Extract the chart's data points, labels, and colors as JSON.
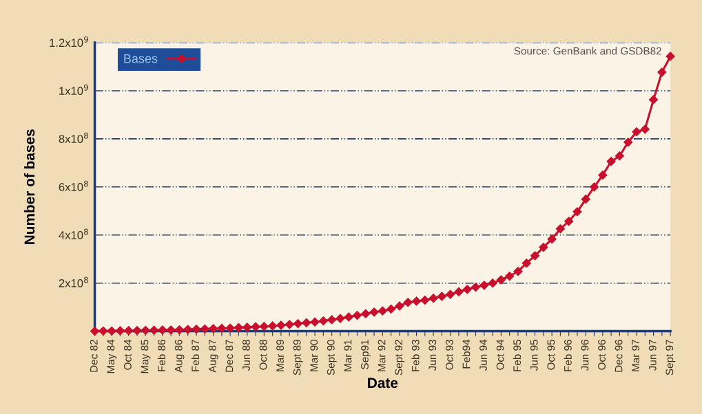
{
  "chart_data": {
    "type": "line",
    "xlabel": "Date",
    "ylabel": "Number of bases",
    "categories": [
      "Dec 82",
      null,
      "May 84",
      null,
      "Oct 84",
      null,
      "May 85",
      null,
      "Feb 86",
      null,
      "Aug 86",
      null,
      "Feb 87",
      null,
      "Aug 87",
      null,
      "Dec 87",
      null,
      "Jun 88",
      null,
      "Oct 88",
      null,
      "Mar 89",
      null,
      "Sept 89",
      null,
      "Mar 90",
      null,
      "Sept 90",
      null,
      "Mar 91",
      null,
      "Sep91",
      null,
      "Mar 92",
      null,
      "Sept 92",
      null,
      "Feb 93",
      null,
      "Jun 93",
      null,
      "Oct 93",
      null,
      "Feb94",
      null,
      "Jun 94",
      null,
      "Oct 94",
      null,
      "Feb 95",
      null,
      "Jun 95",
      null,
      "Oct 95",
      null,
      "Feb 96",
      null,
      "Jun 96",
      null,
      "Oct 96",
      null,
      "Dec 96",
      null,
      "Mar 97",
      null,
      "Jun 97",
      null,
      "Sept 97"
    ],
    "series": [
      {
        "name": "Bases",
        "color": "#c8102e",
        "values": [
          0,
          1000000.0,
          1000000.0,
          2000000.0,
          2500000.0,
          3000000.0,
          3700000.0,
          4000000.0,
          5000000.0,
          5000000.0,
          6000000.0,
          7300000.0,
          8400000.0,
          9500000.0,
          10700000.0,
          11800000.0,
          13000000.0,
          15000000.0,
          16300000.0,
          18300000.0,
          19700000.0,
          22000000.0,
          24800000.0,
          28000000.0,
          31500000.0,
          35000000.0,
          38400000.0,
          42800000.0,
          47600000.0,
          53000000.0,
          59000000.0,
          66000000.0,
          72800000.0,
          79500000.0,
          84000000.0,
          92000000.0,
          105000000.0,
          120000000.0,
          125000000.0,
          129000000.0,
          137000000.0,
          145000000.0,
          153000000.0,
          164000000.0,
          174000000.0,
          183000000.0,
          191000000.0,
          200000000.0,
          214000000.0,
          229000000.0,
          249000000.0,
          283000000.0,
          314000000.0,
          349000000.0,
          383000000.0,
          426000000.0,
          457000000.0,
          497000000.0,
          549000000.0,
          600000000.0,
          649000000.0,
          706000000.0,
          729000000.0,
          786000000.0,
          829000000.0,
          840000000.0,
          963000000.0,
          1077000000.0,
          1143000000.0
        ]
      }
    ],
    "ylim": [
      0,
      1200000000.0
    ],
    "yticks": [
      {
        "value": 200000000.0,
        "label": "2x10$^{8}$"
      },
      {
        "value": 400000000.0,
        "label": "4x10$^{8}$"
      },
      {
        "value": 600000000.0,
        "label": "6x10$^{8}$"
      },
      {
        "value": 800000000.0,
        "label": "8x10$^{8}$"
      },
      {
        "value": 1000000000.0,
        "label": "1x10$^{9}$"
      },
      {
        "value": 1200000000.0,
        "label": "1.2x10$^{9}$"
      }
    ],
    "grid": "y",
    "legend": "top left",
    "marker": "diamond",
    "line_style": "solid",
    "annotations": [
      "Source: GenBank and GSDB82"
    ]
  }
}
